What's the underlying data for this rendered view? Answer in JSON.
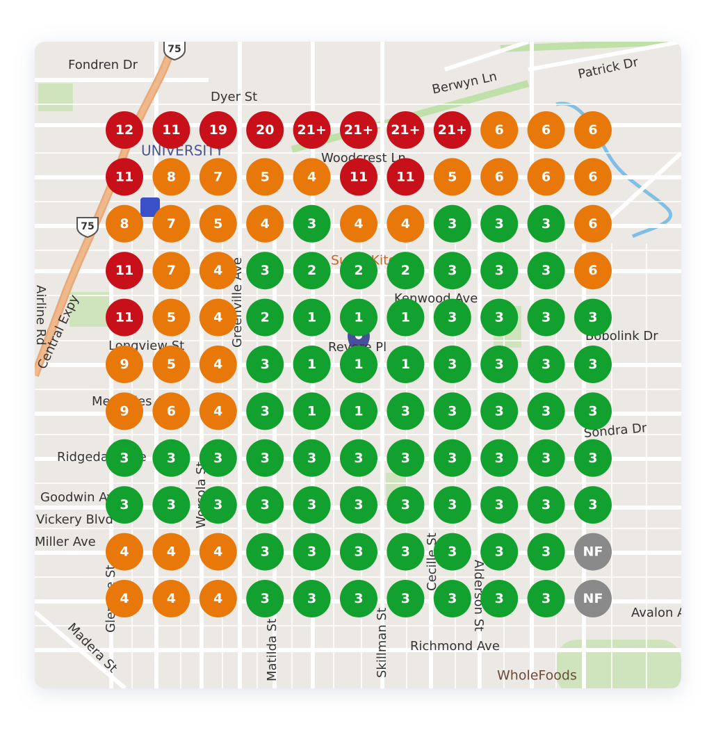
{
  "map": {
    "streets": [
      "Fondren Dr",
      "Dyer St",
      "Berwyn Ln",
      "Patrick Dr",
      "UNIVERSITY",
      "Woodcrest Ln",
      "Airline Rd",
      "Central Expy",
      "Longview St",
      "Revere Pl",
      "Kenwood Ave",
      "Bobolink Dr",
      "Sondra Dr",
      "Ridgedale Ave",
      "Goodwin Ave",
      "Vickery Blvd",
      "Miller Ave",
      "Greenville Ave",
      "Matilda St",
      "Skillman St",
      "Alderson St",
      "Cecille St",
      "Worcola St",
      "Glencoe St",
      "Madera St",
      "Richmond Ave",
      "Avalon Ave",
      "WholeFoods",
      "Sushi Kitchen",
      "Mercedes Ave",
      "75",
      "75"
    ],
    "grid": {
      "rows": [
        [
          {
            "label": "12",
            "color": "#c8101a"
          },
          {
            "label": "11",
            "color": "#c8101a"
          },
          {
            "label": "19",
            "color": "#c8101a"
          },
          {
            "label": "20",
            "color": "#c8101a"
          },
          {
            "label": "21+",
            "color": "#c8101a"
          },
          {
            "label": "21+",
            "color": "#c8101a"
          },
          {
            "label": "21+",
            "color": "#c8101a"
          },
          {
            "label": "21+",
            "color": "#c8101a"
          },
          {
            "label": "6",
            "color": "#e8780a"
          },
          {
            "label": "6",
            "color": "#e8780a"
          },
          {
            "label": "6",
            "color": "#e8780a"
          }
        ],
        [
          {
            "label": "11",
            "color": "#c8101a"
          },
          {
            "label": "8",
            "color": "#e8780a"
          },
          {
            "label": "7",
            "color": "#e8780a"
          },
          {
            "label": "5",
            "color": "#e8780a"
          },
          {
            "label": "4",
            "color": "#e8780a"
          },
          {
            "label": "11",
            "color": "#c8101a"
          },
          {
            "label": "11",
            "color": "#c8101a"
          },
          {
            "label": "5",
            "color": "#e8780a"
          },
          {
            "label": "6",
            "color": "#e8780a"
          },
          {
            "label": "6",
            "color": "#e8780a"
          },
          {
            "label": "6",
            "color": "#e8780a"
          }
        ],
        [
          {
            "label": "8",
            "color": "#e8780a"
          },
          {
            "label": "7",
            "color": "#e8780a"
          },
          {
            "label": "5",
            "color": "#e8780a"
          },
          {
            "label": "4",
            "color": "#e8780a"
          },
          {
            "label": "3",
            "color": "#12a12e"
          },
          {
            "label": "4",
            "color": "#e8780a"
          },
          {
            "label": "4",
            "color": "#e8780a"
          },
          {
            "label": "3",
            "color": "#12a12e"
          },
          {
            "label": "3",
            "color": "#12a12e"
          },
          {
            "label": "3",
            "color": "#12a12e"
          },
          {
            "label": "6",
            "color": "#e8780a"
          }
        ],
        [
          {
            "label": "11",
            "color": "#c8101a"
          },
          {
            "label": "7",
            "color": "#e8780a"
          },
          {
            "label": "4",
            "color": "#e8780a"
          },
          {
            "label": "3",
            "color": "#12a12e"
          },
          {
            "label": "2",
            "color": "#12a12e"
          },
          {
            "label": "2",
            "color": "#12a12e"
          },
          {
            "label": "2",
            "color": "#12a12e"
          },
          {
            "label": "3",
            "color": "#12a12e"
          },
          {
            "label": "3",
            "color": "#12a12e"
          },
          {
            "label": "3",
            "color": "#12a12e"
          },
          {
            "label": "6",
            "color": "#e8780a"
          }
        ],
        [
          {
            "label": "11",
            "color": "#c8101a"
          },
          {
            "label": "5",
            "color": "#e8780a"
          },
          {
            "label": "4",
            "color": "#e8780a"
          },
          {
            "label": "2",
            "color": "#12a12e"
          },
          {
            "label": "1",
            "color": "#12a12e"
          },
          {
            "label": "1",
            "color": "#12a12e"
          },
          {
            "label": "1",
            "color": "#12a12e"
          },
          {
            "label": "3",
            "color": "#12a12e"
          },
          {
            "label": "3",
            "color": "#12a12e"
          },
          {
            "label": "3",
            "color": "#12a12e"
          },
          {
            "label": "3",
            "color": "#12a12e"
          }
        ],
        [
          {
            "label": "9",
            "color": "#e8780a"
          },
          {
            "label": "5",
            "color": "#e8780a"
          },
          {
            "label": "4",
            "color": "#e8780a"
          },
          {
            "label": "3",
            "color": "#12a12e"
          },
          {
            "label": "1",
            "color": "#12a12e"
          },
          {
            "label": "1",
            "color": "#12a12e"
          },
          {
            "label": "1",
            "color": "#12a12e"
          },
          {
            "label": "3",
            "color": "#12a12e"
          },
          {
            "label": "3",
            "color": "#12a12e"
          },
          {
            "label": "3",
            "color": "#12a12e"
          },
          {
            "label": "3",
            "color": "#12a12e"
          }
        ],
        [
          {
            "label": "9",
            "color": "#e8780a"
          },
          {
            "label": "6",
            "color": "#e8780a"
          },
          {
            "label": "4",
            "color": "#e8780a"
          },
          {
            "label": "3",
            "color": "#12a12e"
          },
          {
            "label": "1",
            "color": "#12a12e"
          },
          {
            "label": "1",
            "color": "#12a12e"
          },
          {
            "label": "3",
            "color": "#12a12e"
          },
          {
            "label": "3",
            "color": "#12a12e"
          },
          {
            "label": "3",
            "color": "#12a12e"
          },
          {
            "label": "3",
            "color": "#12a12e"
          },
          {
            "label": "3",
            "color": "#12a12e"
          }
        ],
        [
          {
            "label": "3",
            "color": "#12a12e"
          },
          {
            "label": "3",
            "color": "#12a12e"
          },
          {
            "label": "3",
            "color": "#12a12e"
          },
          {
            "label": "3",
            "color": "#12a12e"
          },
          {
            "label": "3",
            "color": "#12a12e"
          },
          {
            "label": "3",
            "color": "#12a12e"
          },
          {
            "label": "3",
            "color": "#12a12e"
          },
          {
            "label": "3",
            "color": "#12a12e"
          },
          {
            "label": "3",
            "color": "#12a12e"
          },
          {
            "label": "3",
            "color": "#12a12e"
          },
          {
            "label": "3",
            "color": "#12a12e"
          }
        ],
        [
          {
            "label": "3",
            "color": "#12a12e"
          },
          {
            "label": "3",
            "color": "#12a12e"
          },
          {
            "label": "3",
            "color": "#12a12e"
          },
          {
            "label": "3",
            "color": "#12a12e"
          },
          {
            "label": "3",
            "color": "#12a12e"
          },
          {
            "label": "3",
            "color": "#12a12e"
          },
          {
            "label": "3",
            "color": "#12a12e"
          },
          {
            "label": "3",
            "color": "#12a12e"
          },
          {
            "label": "3",
            "color": "#12a12e"
          },
          {
            "label": "3",
            "color": "#12a12e"
          },
          {
            "label": "3",
            "color": "#12a12e"
          }
        ],
        [
          {
            "label": "4",
            "color": "#e8780a"
          },
          {
            "label": "4",
            "color": "#e8780a"
          },
          {
            "label": "4",
            "color": "#e8780a"
          },
          {
            "label": "3",
            "color": "#12a12e"
          },
          {
            "label": "3",
            "color": "#12a12e"
          },
          {
            "label": "3",
            "color": "#12a12e"
          },
          {
            "label": "3",
            "color": "#12a12e"
          },
          {
            "label": "3",
            "color": "#12a12e"
          },
          {
            "label": "3",
            "color": "#12a12e"
          },
          {
            "label": "3",
            "color": "#12a12e"
          },
          {
            "label": "NF",
            "color": "#8a8a8a"
          }
        ],
        [
          {
            "label": "4",
            "color": "#e8780a"
          },
          {
            "label": "4",
            "color": "#e8780a"
          },
          {
            "label": "4",
            "color": "#e8780a"
          },
          {
            "label": "3",
            "color": "#12a12e"
          },
          {
            "label": "3",
            "color": "#12a12e"
          },
          {
            "label": "3",
            "color": "#12a12e"
          },
          {
            "label": "3",
            "color": "#12a12e"
          },
          {
            "label": "3",
            "color": "#12a12e"
          },
          {
            "label": "3",
            "color": "#12a12e"
          },
          {
            "label": "3",
            "color": "#12a12e"
          },
          {
            "label": "NF",
            "color": "#8a8a8a"
          }
        ]
      ]
    }
  }
}
